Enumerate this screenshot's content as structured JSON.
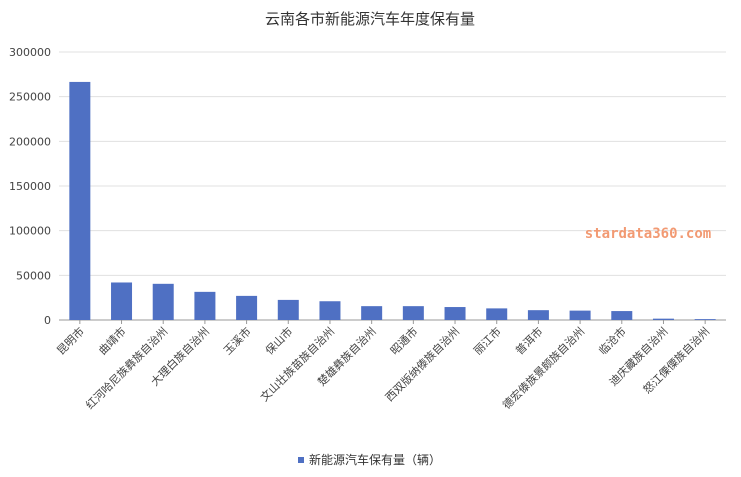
{
  "chart_data": {
    "type": "bar",
    "title": "云南各市新能源汽车年度保有量",
    "categories": [
      "昆明市",
      "曲靖市",
      "红河哈尼族彝族自治州",
      "大理白族自治州",
      "玉溪市",
      "保山市",
      "文山壮族苗族自治州",
      "楚雄彝族自治州",
      "昭通市",
      "西双版纳傣族自治州",
      "丽江市",
      "普洱市",
      "德宏傣族景颇族自治州",
      "临沧市",
      "迪庆藏族自治州",
      "怒江傈僳族自治州"
    ],
    "series": [
      {
        "name": "新能源汽车保有量（辆）",
        "values": [
          266500,
          42000,
          40500,
          31500,
          27000,
          22500,
          21000,
          15500,
          15500,
          14500,
          13000,
          11000,
          10500,
          10000,
          1500,
          1000
        ]
      }
    ],
    "yticks": [
      "0",
      "50000",
      "100000",
      "150000",
      "200000",
      "250000",
      "300000"
    ],
    "ylim": [
      0,
      300000
    ],
    "grid": true,
    "legend_position": "bottom",
    "bar_color": "#4f70c3",
    "watermark": "stardata360.com"
  }
}
